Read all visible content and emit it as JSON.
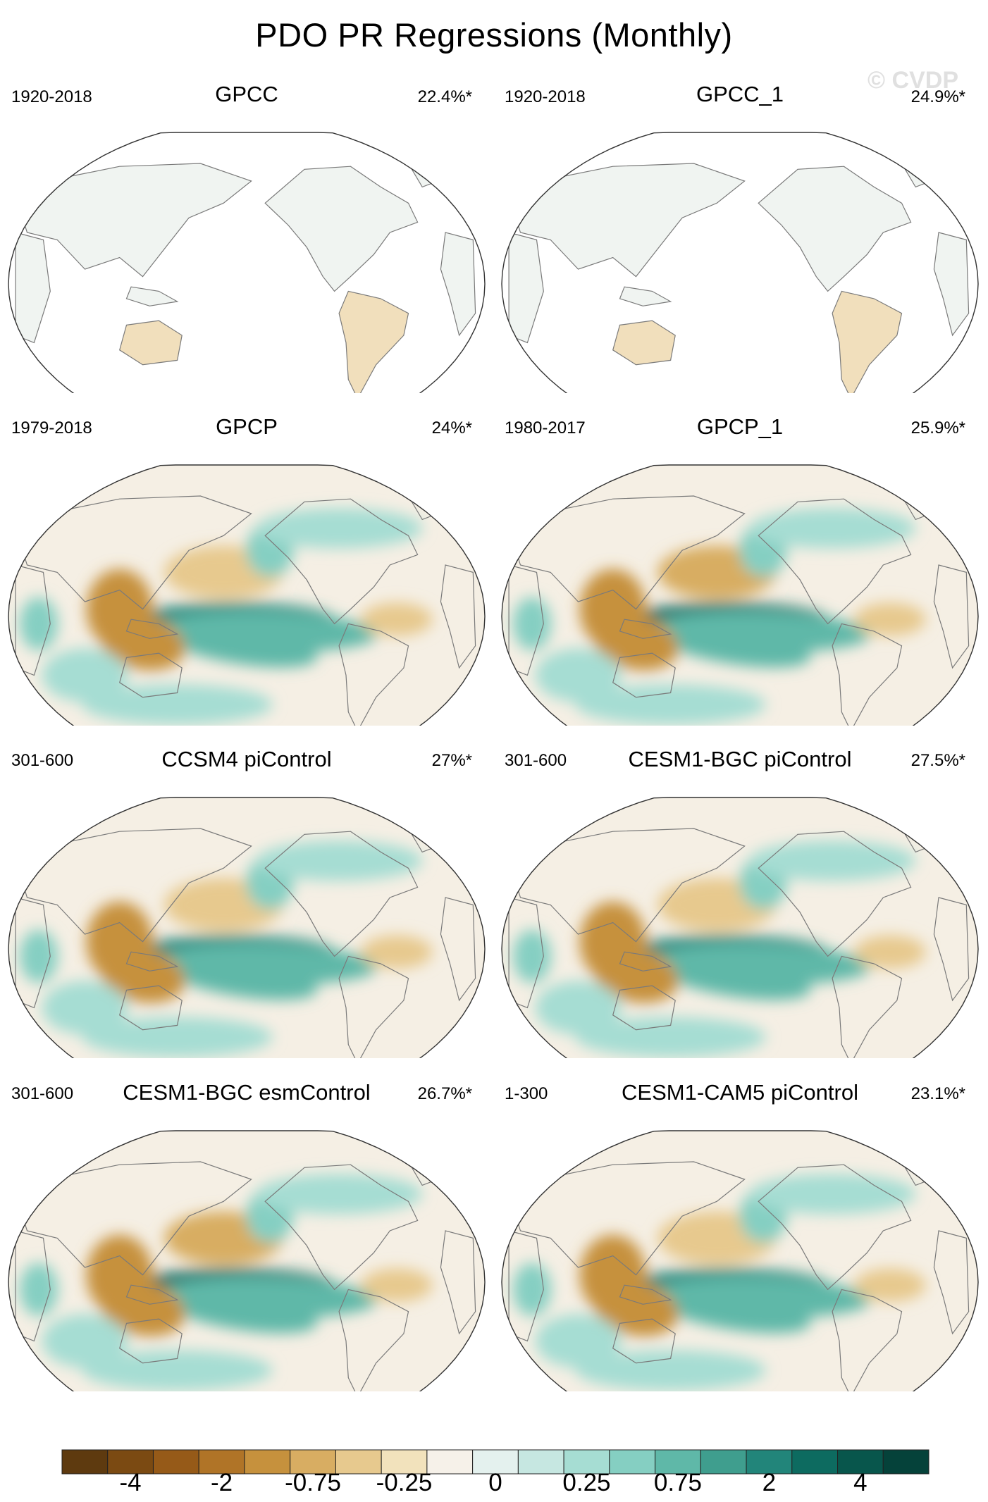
{
  "title": "PDO PR Regressions (Monthly)",
  "watermark": "© CVDP",
  "chart_data": {
    "type": "heatmap",
    "projection": "robinson-like world maps, Pacific-centered",
    "panels": [
      {
        "title": "GPCC",
        "period": "1920-2018",
        "variance": "22.4%*",
        "land_only": true
      },
      {
        "title": "GPCC_1",
        "period": "1920-2018",
        "variance": "24.9%*",
        "land_only": true
      },
      {
        "title": "GPCP",
        "period": "1979-2018",
        "variance": "24%*",
        "land_only": false
      },
      {
        "title": "GPCP_1",
        "period": "1980-2017",
        "variance": "25.9%*",
        "land_only": false
      },
      {
        "title": "CCSM4 piControl",
        "period": "301-600",
        "variance": "27%*",
        "land_only": false
      },
      {
        "title": "CESM1-BGC piControl",
        "period": "301-600",
        "variance": "27.5%*",
        "land_only": false
      },
      {
        "title": "CESM1-BGC esmControl",
        "period": "301-600",
        "variance": "26.7%*",
        "land_only": false
      },
      {
        "title": "CESM1-CAM5 piControl",
        "period": "1-300",
        "variance": "23.1%*",
        "land_only": false
      }
    ],
    "colorbar": {
      "colors": [
        "#5e3a0f",
        "#7b4a12",
        "#965a18",
        "#b07427",
        "#c6913d",
        "#d8ad62",
        "#e7c98e",
        "#f2e2bc",
        "#f6f1e9",
        "#e4f1ee",
        "#c6e7e1",
        "#a6ddd3",
        "#85cfc2",
        "#5fb8a8",
        "#3f9e8e",
        "#22857a",
        "#0d6b60",
        "#08564c",
        "#05423a"
      ],
      "tick_labels": [
        "-4",
        "-2",
        "-0.75",
        "-0.25",
        "0",
        "0.25",
        "0.75",
        "2",
        "4"
      ]
    }
  }
}
